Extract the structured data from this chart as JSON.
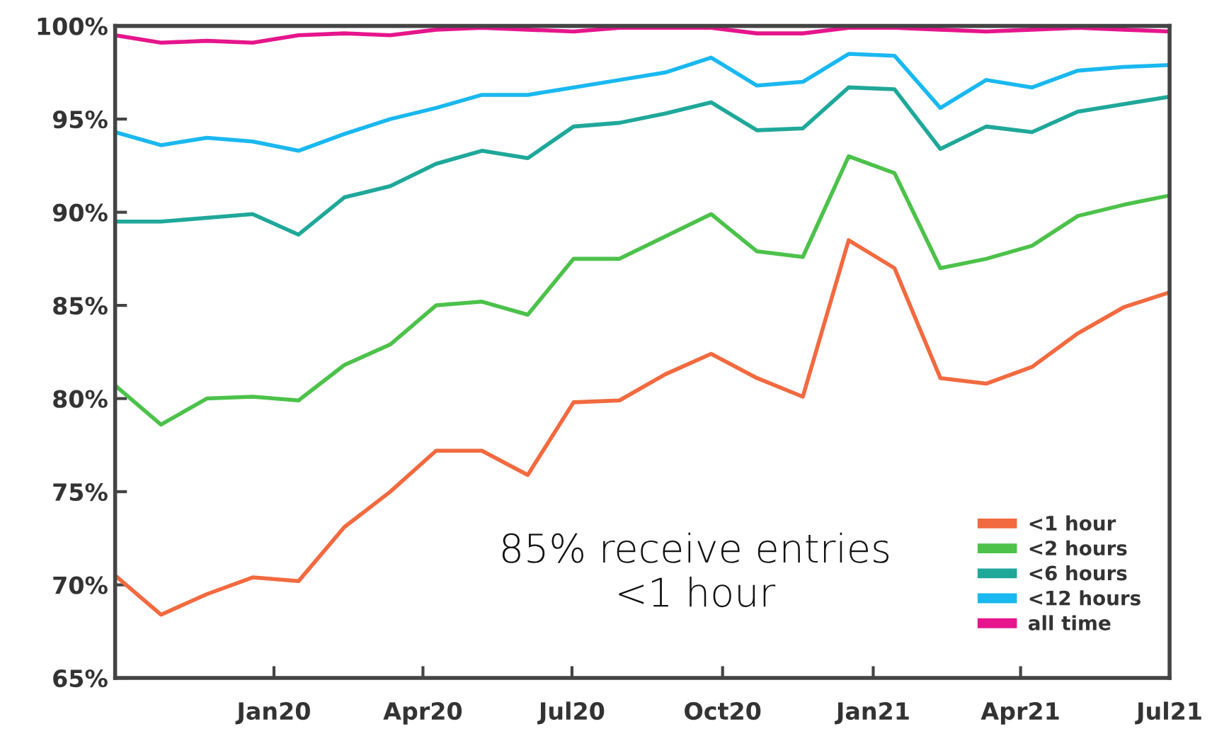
{
  "chart_data": {
    "type": "line",
    "x": [
      "2019-09-26",
      "2019-10-24",
      "2019-11-21",
      "2019-12-19",
      "2020-01-16",
      "2020-02-13",
      "2020-03-12",
      "2020-04-09",
      "2020-05-07",
      "2020-06-04",
      "2020-07-02",
      "2020-07-30",
      "2020-08-27",
      "2020-09-24",
      "2020-10-22",
      "2020-11-19",
      "2020-12-17",
      "2021-01-14",
      "2021-02-11",
      "2021-03-11",
      "2021-04-08",
      "2021-05-06",
      "2021-06-03",
      "2021-07-01"
    ],
    "series": [
      {
        "name": "<1 hour",
        "color": "#f26a3f",
        "values": [
          70.5,
          68.4,
          69.5,
          70.4,
          70.2,
          73.1,
          75.0,
          77.2,
          77.2,
          75.9,
          79.8,
          79.9,
          81.3,
          82.4,
          81.1,
          80.1,
          88.5,
          87.0,
          81.1,
          80.8,
          81.7,
          83.5,
          84.9,
          85.7
        ]
      },
      {
        "name": "<2 hours",
        "color": "#4cc24a",
        "values": [
          80.7,
          78.6,
          80.0,
          80.1,
          79.9,
          81.8,
          82.9,
          85.0,
          85.2,
          84.5,
          87.5,
          87.5,
          88.7,
          89.9,
          87.9,
          87.6,
          93.0,
          92.1,
          87.0,
          87.5,
          88.2,
          89.8,
          90.4,
          90.9
        ]
      },
      {
        "name": "<6 hours",
        "color": "#1fa89a",
        "values": [
          89.5,
          89.5,
          89.7,
          89.9,
          88.8,
          90.8,
          91.4,
          92.6,
          93.3,
          92.9,
          94.6,
          94.8,
          95.3,
          95.9,
          94.4,
          94.5,
          96.7,
          96.6,
          93.4,
          94.6,
          94.3,
          95.4,
          95.8,
          96.2
        ]
      },
      {
        "name": "<12 hours",
        "color": "#1ab8f0",
        "values": [
          94.3,
          93.6,
          94.0,
          93.8,
          93.3,
          94.2,
          95.0,
          95.6,
          96.3,
          96.3,
          96.7,
          97.1,
          97.5,
          98.3,
          96.8,
          97.0,
          98.5,
          98.4,
          95.6,
          97.1,
          96.7,
          97.6,
          97.8,
          97.9
        ]
      },
      {
        "name": "all time",
        "color": "#e6158c",
        "values": [
          99.5,
          99.1,
          99.2,
          99.1,
          99.5,
          99.6,
          99.5,
          99.8,
          99.9,
          99.8,
          99.7,
          99.9,
          99.9,
          99.9,
          99.6,
          99.6,
          99.9,
          99.9,
          99.8,
          99.7,
          99.8,
          99.9,
          99.8,
          99.7
        ]
      }
    ],
    "xlim": [
      "2019-09-26",
      "2021-07-01"
    ],
    "xticks": [
      {
        "value": "2020-01-01",
        "label": "Jan20"
      },
      {
        "value": "2020-04-01",
        "label": "Apr20"
      },
      {
        "value": "2020-07-01",
        "label": "Jul20"
      },
      {
        "value": "2020-10-01",
        "label": "Oct20"
      },
      {
        "value": "2021-01-01",
        "label": "Jan21"
      },
      {
        "value": "2021-04-01",
        "label": "Apr21"
      },
      {
        "value": "2021-07-01",
        "label": "Jul21"
      }
    ],
    "ylim": [
      65,
      100
    ],
    "yticks": [
      {
        "value": 65,
        "label": "65%"
      },
      {
        "value": 70,
        "label": "70%"
      },
      {
        "value": 75,
        "label": "75%"
      },
      {
        "value": 80,
        "label": "80%"
      },
      {
        "value": 85,
        "label": "85%"
      },
      {
        "value": 90,
        "label": "90%"
      },
      {
        "value": 95,
        "label": "95%"
      },
      {
        "value": 100,
        "label": "100%"
      }
    ],
    "annotations": [
      "85% receive entries\n<1 hour"
    ],
    "legend": "bottom right",
    "grid": false,
    "marker": "none",
    "line_style": "solid"
  }
}
